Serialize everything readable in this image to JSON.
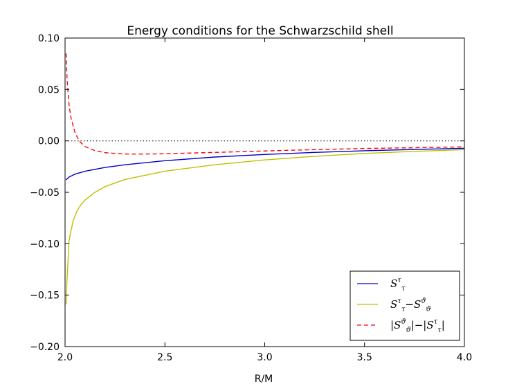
{
  "chart_data": {
    "type": "line",
    "title": "Energy conditions for the Schwarzschild shell",
    "xlabel": "R/M",
    "ylabel": "",
    "xlim": [
      2.0,
      4.0
    ],
    "ylim": [
      -0.2,
      0.1
    ],
    "xticks": [
      "2.0",
      "2.5",
      "3.0",
      "3.5",
      "4.0"
    ],
    "yticks": [
      "0.10",
      "0.05",
      "0.00",
      "−0.05",
      "−0.10",
      "−0.15",
      "−0.20"
    ],
    "reference_line": {
      "y": 0.0,
      "style": "dotted",
      "color": "#000000"
    },
    "legend_position": "lower-right",
    "series": [
      {
        "name": "S^τ_τ",
        "legend": {
          "main": "S",
          "sup": "τ",
          "sub": "τ"
        },
        "color": "#0000cc",
        "style": "solid",
        "x": [
          2.005,
          2.02,
          2.05,
          2.1,
          2.2,
          2.3,
          2.5,
          2.75,
          3.0,
          3.25,
          3.5,
          3.75,
          4.0
        ],
        "y": [
          -0.038,
          -0.0352,
          -0.0323,
          -0.0295,
          -0.0258,
          -0.0232,
          -0.0193,
          -0.0157,
          -0.0132,
          -0.0112,
          -0.0096,
          -0.0083,
          -0.0072
        ]
      },
      {
        "name": "S^τ_τ − S^ϑ_ϑ",
        "legend": {
          "main": "S",
          "sup": "τ",
          "sub": "τ",
          "minus": "−",
          "main2": "S",
          "sup2": "ϑ",
          "sub2": "ϑ"
        },
        "color": "#bfbf00",
        "style": "solid",
        "x": [
          2.005,
          2.01,
          2.02,
          2.04,
          2.06,
          2.08,
          2.1,
          2.15,
          2.2,
          2.3,
          2.5,
          2.75,
          3.0,
          3.25,
          3.5,
          3.75,
          4.0
        ],
        "y": [
          -0.159,
          -0.135,
          -0.097,
          -0.078,
          -0.068,
          -0.062,
          -0.0575,
          -0.05,
          -0.0445,
          -0.0375,
          -0.0295,
          -0.0232,
          -0.0185,
          -0.015,
          -0.0122,
          -0.0102,
          -0.0085
        ]
      },
      {
        "name": "|S^ϑ_ϑ| − |S^τ_τ|",
        "legend": {
          "bar": "|",
          "main": "S",
          "sup": "ϑ",
          "sub": "ϑ",
          "minus": "−",
          "main2": "S",
          "sup2": "τ",
          "sub2": "τ"
        },
        "color": "#ff0000",
        "style": "dashed",
        "x": [
          2.005,
          2.01,
          2.02,
          2.03,
          2.05,
          2.07,
          2.1,
          2.15,
          2.2,
          2.3,
          2.4,
          2.5,
          2.75,
          3.0,
          3.25,
          3.5,
          3.75,
          4.0
        ],
        "y": [
          0.085,
          0.06,
          0.035,
          0.022,
          0.008,
          0.0,
          -0.0055,
          -0.0095,
          -0.0115,
          -0.0128,
          -0.0128,
          -0.0125,
          -0.0112,
          -0.0098,
          -0.0085,
          -0.0074,
          -0.0066,
          -0.0058
        ]
      }
    ]
  }
}
